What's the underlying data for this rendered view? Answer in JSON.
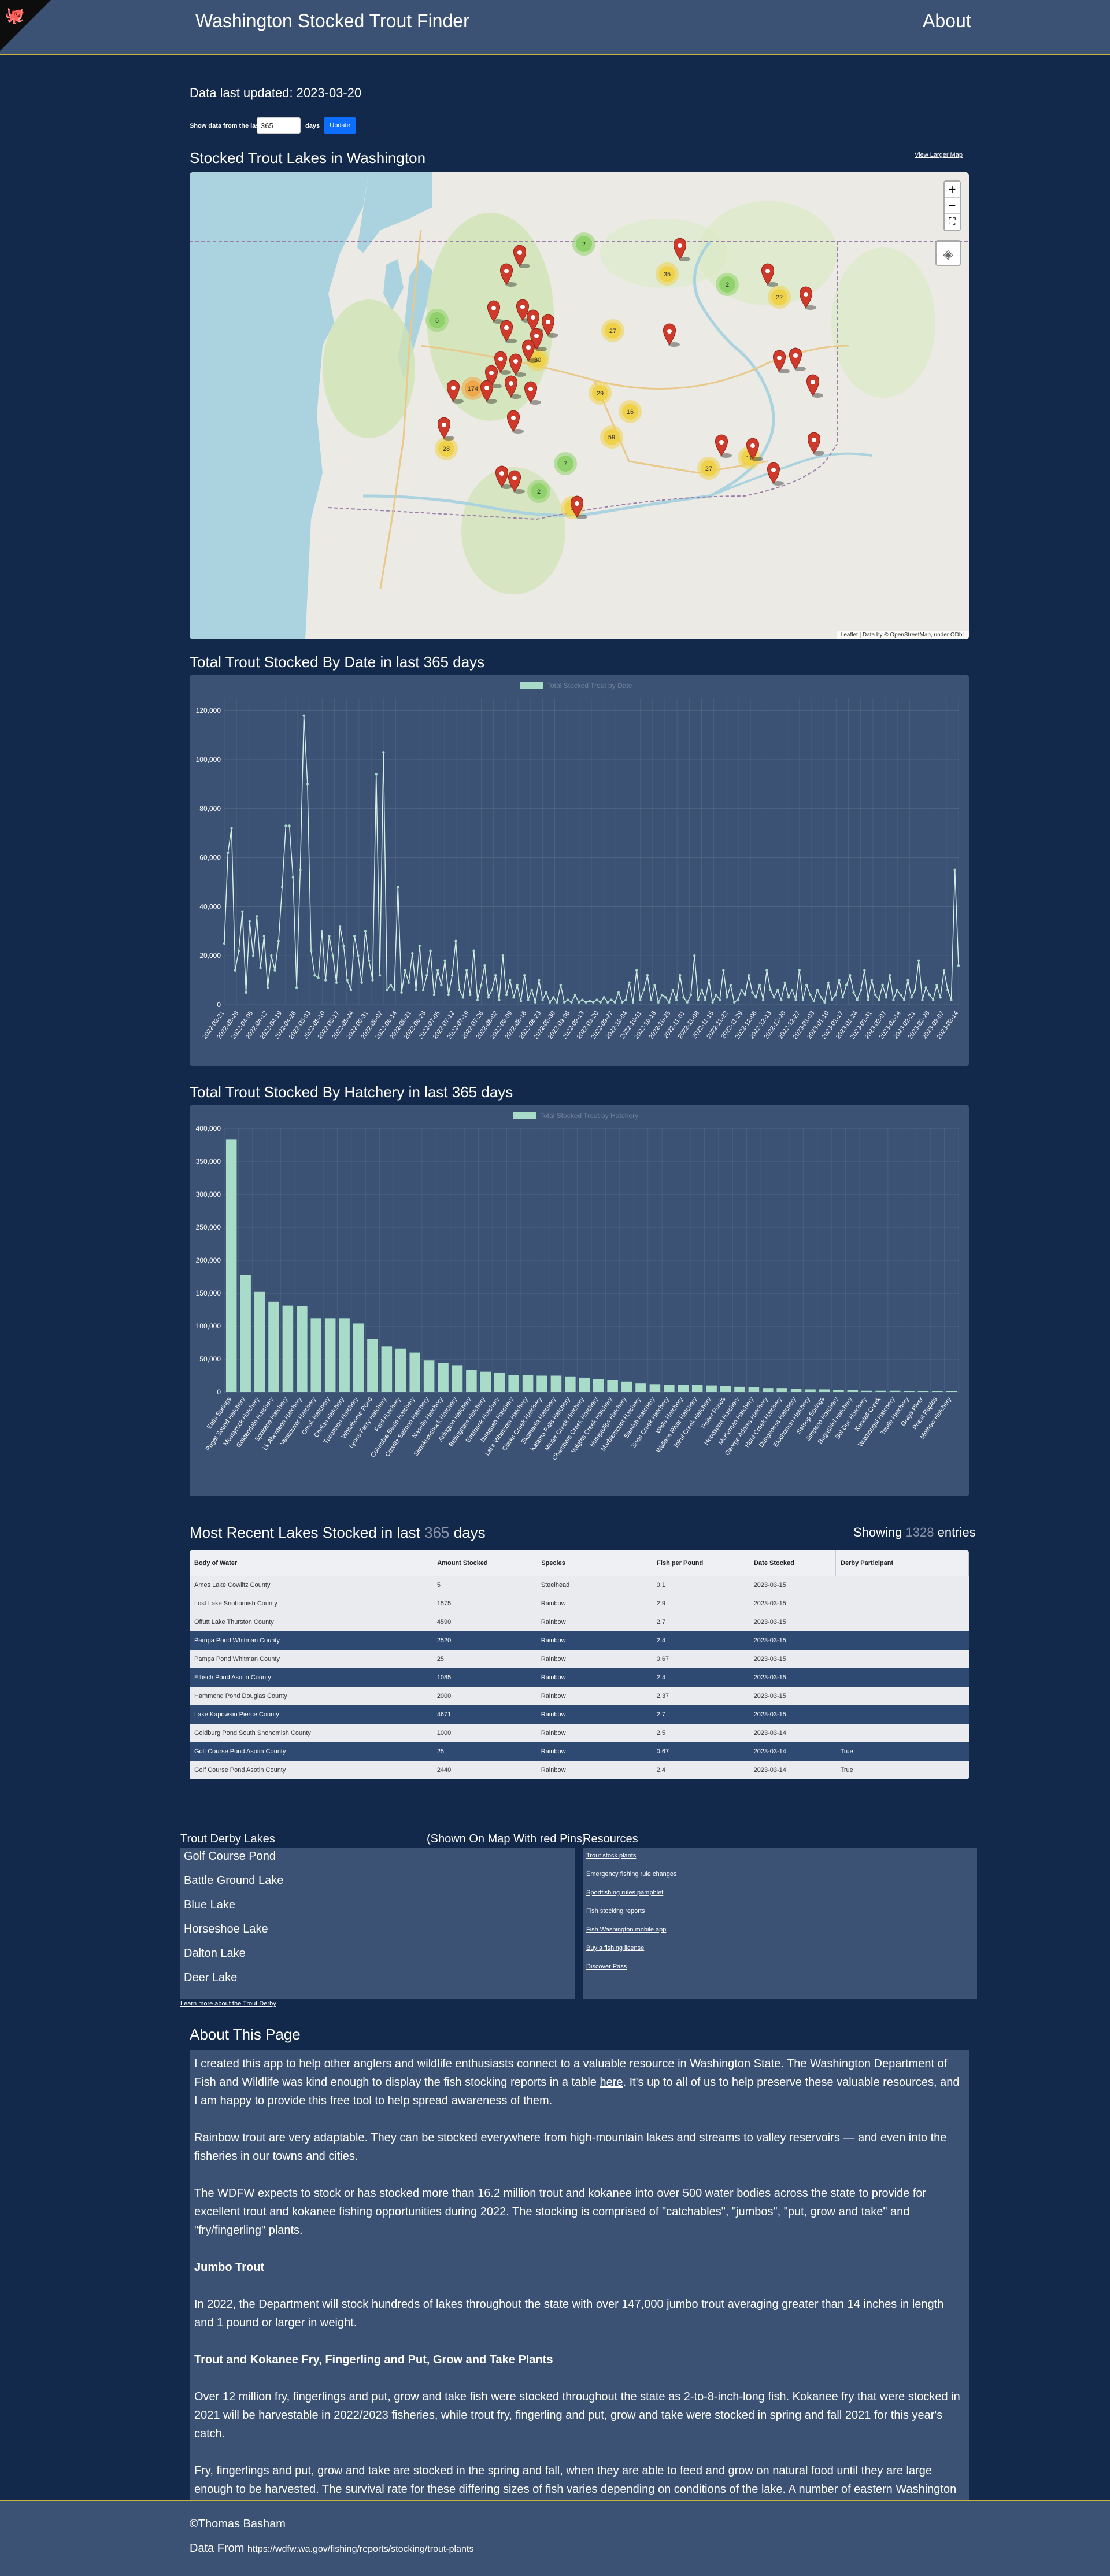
{
  "header": {
    "title": "Washington Stocked Trout Finder",
    "about": "About"
  },
  "controls": {
    "updated": "Data last updated: 2023-03-20",
    "show_label": "Show data from the last",
    "days_value": "365",
    "days_suffix": "days",
    "update_label": "Update"
  },
  "map": {
    "title": "Stocked Trout Lakes in Washington",
    "larger_link": "View Larger Map",
    "zoom_in": "+",
    "zoom_out": "−",
    "fullscreen": "⛶",
    "attribution": "Leaflet | Data by © OpenStreetMap, under ODbL",
    "clusters": [
      {
        "label": "2"
      },
      {
        "label": "35"
      },
      {
        "label": "2"
      },
      {
        "label": "22"
      },
      {
        "label": "6"
      },
      {
        "label": "27"
      },
      {
        "label": "30"
      },
      {
        "label": "174"
      },
      {
        "label": "29"
      },
      {
        "label": "16"
      },
      {
        "label": "59"
      },
      {
        "label": "7"
      },
      {
        "label": "27"
      },
      {
        "label": "28"
      },
      {
        "label": "11"
      },
      {
        "label": "2"
      },
      {
        "label": "3"
      }
    ]
  },
  "chart1": {
    "title": "Total Trout Stocked By Date in last 365 days",
    "legend": "Total Stocked Trout by Date",
    "y_ticks": [
      "0",
      "20,000",
      "40,000",
      "60,000",
      "80,000",
      "100,000",
      "120,000"
    ],
    "x_labels": [
      "2022-03-21",
      "2022-03-29",
      "2022-04-05",
      "2022-04-12",
      "2022-04-19",
      "2022-04-26",
      "2022-05-03",
      "2022-05-10",
      "2022-05-17",
      "2022-05-24",
      "2022-05-31",
      "2022-06-07",
      "2022-06-14",
      "2022-06-21",
      "2022-06-28",
      "2022-07-05",
      "2022-07-12",
      "2022-07-19",
      "2022-07-26",
      "2022-08-02",
      "2022-08-09",
      "2022-08-16",
      "2022-08-23",
      "2022-08-30",
      "2022-09-06",
      "2022-09-13",
      "2022-09-20",
      "2022-09-27",
      "2022-10-04",
      "2022-10-11",
      "2022-10-18",
      "2022-10-25",
      "2022-11-01",
      "2022-11-08",
      "2022-11-15",
      "2022-11-22",
      "2022-11-29",
      "2022-12-06",
      "2022-12-13",
      "2022-12-20",
      "2022-12-27",
      "2023-01-03",
      "2023-01-10",
      "2023-01-17",
      "2023-01-24",
      "2023-01-31",
      "2023-02-07",
      "2023-02-14",
      "2023-02-21",
      "2023-02-28",
      "2023-03-07",
      "2023-03-14"
    ]
  },
  "chart_data": [
    {
      "type": "line",
      "title": "Total Trout Stocked By Date in last 365 days",
      "series": [
        {
          "name": "Total Stocked Trout by Date",
          "values": [
            25000,
            62000,
            72000,
            14000,
            22000,
            38000,
            5000,
            34000,
            20000,
            36000,
            15000,
            28000,
            7000,
            20000,
            14000,
            26000,
            48000,
            73000,
            73000,
            52000,
            7000,
            55000,
            118000,
            90000,
            22000,
            12000,
            11000,
            30000,
            10000,
            28000,
            20000,
            9000,
            32000,
            24000,
            10000,
            6000,
            28000,
            20000,
            9000,
            30000,
            18000,
            10000,
            94000,
            12000,
            103000,
            6000,
            8000,
            6000,
            48000,
            5000,
            14000,
            9000,
            21000,
            6000,
            24000,
            6000,
            12000,
            22000,
            4000,
            14000,
            8000,
            18000,
            4000,
            12000,
            26000,
            6000,
            3000,
            14000,
            4000,
            22000,
            2000,
            8000,
            16000,
            3000,
            6000,
            12000,
            2000,
            20000,
            4000,
            10000,
            3000,
            8000,
            1500,
            12000,
            2000,
            6000,
            1000,
            10000,
            2000,
            5000,
            1000,
            3000,
            1000,
            8000,
            1000,
            2000,
            1000,
            4000,
            1000,
            2000,
            1000,
            1500,
            1000,
            2000,
            1000,
            3000,
            1000,
            2000,
            1000,
            5000,
            1000,
            2000,
            9000,
            1000,
            14000,
            2000,
            6000,
            12000,
            2000,
            8000,
            1000,
            4000,
            3000,
            1000,
            6000,
            2000,
            12000,
            3000,
            1000,
            4000,
            20000,
            2000,
            6000,
            2000,
            10000,
            1000,
            4000,
            2000,
            14000,
            3000,
            8000,
            1000,
            2000,
            6000,
            4000,
            12000,
            5000,
            3000,
            8000,
            2000,
            14000,
            6000,
            3000,
            6000,
            2000,
            9000,
            3000,
            6000,
            2000,
            14000,
            2000,
            8000,
            4000,
            1500,
            6000,
            3000,
            1000,
            9000,
            2000,
            4000,
            10000,
            3000,
            8000,
            12000,
            5000,
            2000,
            6000,
            14000,
            2000,
            10000,
            4000,
            2000,
            8000,
            3000,
            12000,
            2000,
            6000,
            4000,
            2000,
            10000,
            3000,
            6000,
            18000,
            2000,
            7000,
            4000,
            2000,
            8000,
            3000,
            14000,
            6000,
            2000,
            55000,
            16000
          ]
        }
      ],
      "ylim": [
        0,
        125000
      ]
    },
    {
      "type": "bar",
      "title": "Total Trout Stocked By Hatchery in last 365 days",
      "categories": [
        "Eells Springs",
        "Puget Sound Hatchery",
        "Mossyrock Hatchery",
        "Goldendale Hatchery",
        "Spokane Hatchery",
        "Lk Aberdeen Hatchery",
        "Vancouver Hatchery",
        "Omak Hatchery",
        "Chelan Hatchery",
        "Tucannon Hatchery",
        "Whitehorse Pond",
        "Lyons Ferry Hatchery",
        "Ford Hatchery",
        "Columbia Basin Hatchery",
        "Cowlitz Salmon Hatchery",
        "Naselle Hatchery",
        "Skookumchuck Hatchery",
        "Arlington Hatchery",
        "Bellingham Hatchery",
        "Eastbank Hatchery",
        "Issaquah Hatchery",
        "Lake Whatcom Hatchery",
        "Clarks Creek Hatchery",
        "Skamania Hatchery",
        "Kalama Falls Hatchery",
        "Minter Creek Hatchery",
        "Chambers Creek Hatchery",
        "Voights Creek Hatchery",
        "Humptulips Hatchery",
        "Marblemount Hatchery",
        "Samish Hatchery",
        "Soos Creek Hatchery",
        "Wells Hatchery",
        "Wallace River Hatchery",
        "Tokul Creek Hatchery",
        "Reiter Ponds",
        "Hoodsport Hatchery",
        "McKernan Hatchery",
        "George Adams Hatchery",
        "Hurd Creek Hatchery",
        "Dungeness Hatchery",
        "Elochoman Hatchery",
        "Satsop Springs",
        "Simpson Hatchery",
        "Bogachiel Hatchery",
        "Sol Duc Hatchery",
        "Kendall Creek",
        "Washougal Hatchery",
        "Toutle Hatchery",
        "Grays River",
        "Priest Rapids",
        "Methow Hatchery"
      ],
      "values": [
        383000,
        178000,
        152000,
        137000,
        131000,
        130000,
        112000,
        112000,
        112000,
        104000,
        80000,
        69000,
        66000,
        60000,
        48000,
        44000,
        40000,
        34000,
        31000,
        29000,
        26000,
        26000,
        25000,
        25000,
        23000,
        22000,
        20000,
        18000,
        16000,
        13000,
        12000,
        11000,
        11000,
        11000,
        10000,
        9000,
        8000,
        7000,
        6000,
        6000,
        5000,
        4000,
        4000,
        3000,
        3000,
        2000,
        2000,
        2000,
        1000,
        1000,
        1000,
        1000
      ],
      "ylim": [
        0,
        400000
      ]
    }
  ],
  "chart2": {
    "title": "Total Trout Stocked By Hatchery in last 365 days",
    "legend": "Total Stocked Trout by Hatchery",
    "y_ticks": [
      "0",
      "50,000",
      "100,000",
      "150,000",
      "200,000",
      "250,000",
      "300,000",
      "350,000",
      "400,000"
    ]
  },
  "table": {
    "title_pre": "Most Recent Lakes Stocked in last",
    "title_days": "365",
    "title_post": "days",
    "count_pre": "Showing",
    "count_num": "1328",
    "count_post": "entries",
    "headers": [
      "Body of Water",
      "Amount Stocked",
      "Species",
      "Fish per Pound",
      "Date Stocked",
      "Derby Participant"
    ],
    "rows": [
      [
        "Ames Lake Cowlitz County",
        "5",
        "Steelhead",
        "0.1",
        "2023-03-15",
        ""
      ],
      [
        "Lost Lake Snohomish County",
        "1575",
        "Rainbow",
        "2.9",
        "2023-03-15",
        ""
      ],
      [
        "Offutt Lake Thurston County",
        "4590",
        "Rainbow",
        "2.7",
        "2023-03-15",
        ""
      ],
      [
        "Pampa Pond Whitman County",
        "2520",
        "Rainbow",
        "2.4",
        "2023-03-15",
        ""
      ],
      [
        "Pampa Pond Whitman County",
        "25",
        "Rainbow",
        "0.67",
        "2023-03-15",
        ""
      ],
      [
        "Elbsch Pond Asotin County",
        "1085",
        "Rainbow",
        "2.4",
        "2023-03-15",
        ""
      ],
      [
        "Hammond Pond Douglas County",
        "2000",
        "Rainbow",
        "2.37",
        "2023-03-15",
        ""
      ],
      [
        "Lake Kapowsin Pierce County",
        "4671",
        "Rainbow",
        "2.7",
        "2023-03-15",
        ""
      ],
      [
        "Goldburg Pond South Snohomish County",
        "1000",
        "Rainbow",
        "2.5",
        "2023-03-14",
        ""
      ],
      [
        "Golf Course Pond Asotin County",
        "25",
        "Rainbow",
        "0.67",
        "2023-03-14",
        "True"
      ],
      [
        "Golf Course Pond Asotin County",
        "2440",
        "Rainbow",
        "2.4",
        "2023-03-14",
        "True"
      ]
    ]
  },
  "derby": {
    "heading": "Trout Derby Lakes",
    "note": "(Shown On Map With red Pins)",
    "lakes": [
      "Golf Course Pond",
      "Battle Ground Lake",
      "Blue Lake",
      "Horseshoe Lake",
      "Dalton Lake",
      "Deer Lake"
    ],
    "learn_more": "Learn more about the Trout Derby"
  },
  "resources": {
    "heading": "Resources",
    "links": [
      "Trout stock plants",
      "Emergency fishing rule changes",
      "Sportfishing rules pamphlet",
      "Fish stocking reports",
      "Fish Washington mobile app",
      "Buy a fishing license",
      "Discover Pass"
    ]
  },
  "about": {
    "title": "About This Page",
    "p1_pre": "I created this app to help other anglers and wildlife enthusiasts connect to a valuable resource in Washington State. The Washington Department of Fish and Wildlife was kind enough to display the fish stocking reports in a table ",
    "p1_link": "here",
    "p1_post": ". It's up to all of us to help preserve these valuable resources, and I am happy to provide this free tool to help spread awareness of them.",
    "p2": "Rainbow trout are very adaptable. They can be stocked everywhere from high-mountain lakes and streams to valley reservoirs — and even into the fisheries in our towns and cities.",
    "p3": "The WDFW expects to stock or has stocked more than 16.2 million trout and kokanee into over 500 water bodies across the state to provide for excellent trout and kokanee fishing opportunities during 2022. The stocking is comprised of \"catchables\", \"jumbos\", \"put, grow and take\" and \"fry/fingerling\" plants.",
    "h1": "Jumbo Trout",
    "p4": "In 2022, the Department will stock hundreds of lakes throughout the state with over 147,000 jumbo trout averaging greater than 14 inches in length and 1 pound or larger in weight.",
    "h2": "Trout and Kokanee Fry, Fingerling and Put, Grow and Take Plants",
    "p5": "Over 12 million fry, fingerlings and put, grow and take fish were stocked throughout the state as 2-to-8-inch-long fish. Kokanee fry that were stocked in 2021 will be harvestable in 2022/2023 fisheries, while trout fry, fingerling and put, grow and take were stocked in spring and fall 2021 for this year's catch.",
    "p6": "Fry, fingerlings and put, grow and take are stocked in the spring and fall, when they are able to feed and grow on natural food until they are large enough to be harvested. The survival rate for these differing sizes of fish varies depending on conditions of the lake. A number of eastern Washington lakes are managed so that fry survival is very good and therefore are the primary source of trout available for harvest. Western Washington lowland lakes depend primarily on catchable-size trout plants because of relatively low fry survival. In Western Washington, where fry plants are successful, the ones that survive supplement the catchable trout plants."
  },
  "footer": {
    "copyright": "©Thomas Basham",
    "data_from_label": "Data From",
    "data_from_url": "https://wdfw.wa.gov/fishing/reports/stocking/trout-plants"
  },
  "colors": {
    "navbar": "#3b5274",
    "page": "#13294b",
    "accent": "#c9b23c",
    "series": "#a8dcc8"
  }
}
